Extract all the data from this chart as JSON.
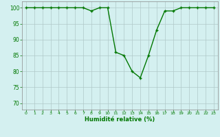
{
  "x": [
    0,
    1,
    2,
    3,
    4,
    5,
    6,
    7,
    8,
    9,
    10,
    11,
    12,
    13,
    14,
    15,
    16,
    17,
    18,
    19,
    20,
    21,
    22,
    23
  ],
  "y": [
    100,
    100,
    100,
    100,
    100,
    100,
    100,
    100,
    99,
    100,
    100,
    86,
    85,
    80,
    78,
    85,
    93,
    99,
    99,
    100,
    100,
    100,
    100,
    100
  ],
  "line_color": "#007700",
  "marker": "+",
  "markersize": 3,
  "linewidth": 1.0,
  "bg_color": "#d4f0f0",
  "grid_color": "#b0c8c8",
  "xlabel": "Humidité relative (%)",
  "xlabel_color": "#007700",
  "ylabel_ticks": [
    70,
    75,
    80,
    85,
    90,
    95,
    100
  ],
  "xtick_labels": [
    "0",
    "1",
    "2",
    "3",
    "4",
    "5",
    "6",
    "7",
    "8",
    "9",
    "10",
    "11",
    "12",
    "13",
    "14",
    "15",
    "16",
    "17",
    "18",
    "19",
    "20",
    "21",
    "22",
    "23"
  ],
  "ylim": [
    68,
    102
  ],
  "xlim": [
    -0.5,
    23.5
  ]
}
